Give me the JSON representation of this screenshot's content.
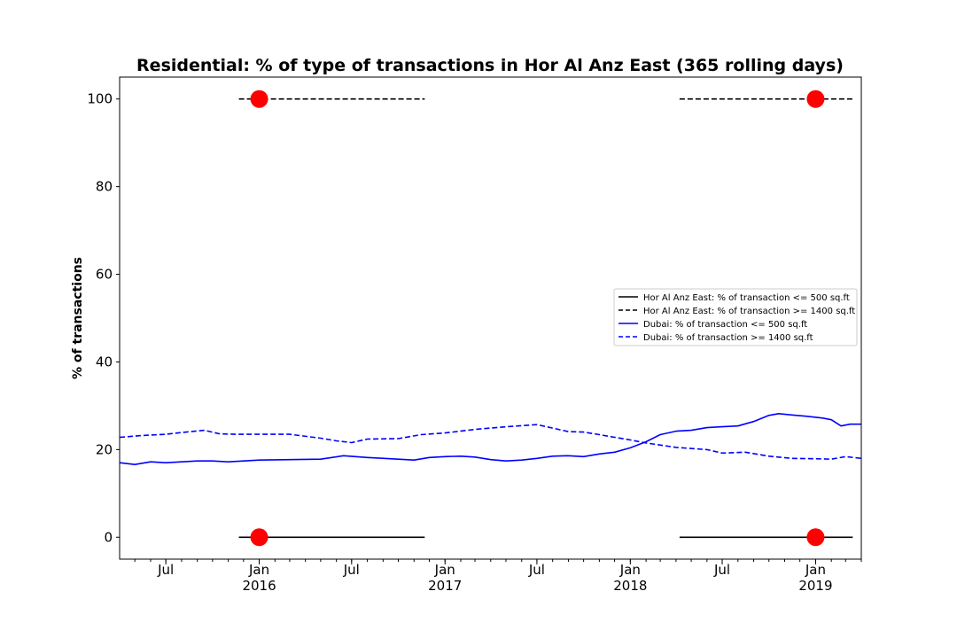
{
  "chart_data": {
    "type": "line",
    "title": "Residential: % of type of transactions in Hor Al Anz East (365 rolling days)",
    "ylabel": "% of transactions",
    "xlabel": "",
    "ylim": [
      -5,
      105
    ],
    "xlim": [
      "2015-04-01",
      "2019-04-01"
    ],
    "yticks": [
      0,
      20,
      40,
      60,
      80,
      100
    ],
    "xticks": [
      {
        "date": "2015-07-01",
        "label": "Jul",
        "sublabel": ""
      },
      {
        "date": "2016-01-01",
        "label": "Jan",
        "sublabel": "2016"
      },
      {
        "date": "2016-07-01",
        "label": "Jul",
        "sublabel": ""
      },
      {
        "date": "2017-01-01",
        "label": "Jan",
        "sublabel": "2017"
      },
      {
        "date": "2017-07-01",
        "label": "Jul",
        "sublabel": ""
      },
      {
        "date": "2018-01-01",
        "label": "Jan",
        "sublabel": "2018"
      },
      {
        "date": "2018-07-01",
        "label": "Jul",
        "sublabel": ""
      },
      {
        "date": "2019-01-01",
        "label": "Jan",
        "sublabel": "2019"
      }
    ],
    "legend_position": "center-right",
    "grid": false,
    "series": [
      {
        "name": "Hor Al Anz East: % of transaction <= 500 sq.ft",
        "color": "#000000",
        "style": "solid",
        "segments": [
          [
            {
              "x": "2015-11-22",
              "y": 0
            },
            {
              "x": "2016-11-22",
              "y": 0
            }
          ],
          [
            {
              "x": "2018-04-08",
              "y": 0
            },
            {
              "x": "2019-03-15",
              "y": 0
            }
          ]
        ]
      },
      {
        "name": "Hor Al Anz East: % of transaction >= 1400 sq.ft",
        "color": "#000000",
        "style": "dashed",
        "segments": [
          [
            {
              "x": "2015-11-22",
              "y": 100
            },
            {
              "x": "2016-11-22",
              "y": 100
            }
          ],
          [
            {
              "x": "2018-04-08",
              "y": 100
            },
            {
              "x": "2019-03-15",
              "y": 100
            }
          ]
        ]
      },
      {
        "name": "Dubai: % of transaction <= 500 sq.ft",
        "color": "#0000ff",
        "style": "solid",
        "points": [
          {
            "x": "2015-04-01",
            "y": 17.0
          },
          {
            "x": "2015-05-01",
            "y": 16.6
          },
          {
            "x": "2015-06-01",
            "y": 17.2
          },
          {
            "x": "2015-07-01",
            "y": 17.0
          },
          {
            "x": "2015-08-01",
            "y": 17.2
          },
          {
            "x": "2015-09-01",
            "y": 17.4
          },
          {
            "x": "2015-10-01",
            "y": 17.4
          },
          {
            "x": "2015-11-01",
            "y": 17.2
          },
          {
            "x": "2016-01-01",
            "y": 17.6
          },
          {
            "x": "2016-03-01",
            "y": 17.7
          },
          {
            "x": "2016-05-01",
            "y": 17.8
          },
          {
            "x": "2016-06-15",
            "y": 18.6
          },
          {
            "x": "2016-08-01",
            "y": 18.2
          },
          {
            "x": "2016-09-15",
            "y": 17.9
          },
          {
            "x": "2016-11-01",
            "y": 17.6
          },
          {
            "x": "2016-12-01",
            "y": 18.2
          },
          {
            "x": "2017-01-01",
            "y": 18.4
          },
          {
            "x": "2017-02-01",
            "y": 18.5
          },
          {
            "x": "2017-03-01",
            "y": 18.3
          },
          {
            "x": "2017-04-01",
            "y": 17.7
          },
          {
            "x": "2017-05-01",
            "y": 17.4
          },
          {
            "x": "2017-06-01",
            "y": 17.6
          },
          {
            "x": "2017-07-01",
            "y": 18.0
          },
          {
            "x": "2017-08-01",
            "y": 18.5
          },
          {
            "x": "2017-09-01",
            "y": 18.6
          },
          {
            "x": "2017-10-01",
            "y": 18.4
          },
          {
            "x": "2017-11-01",
            "y": 19.0
          },
          {
            "x": "2017-12-01",
            "y": 19.4
          },
          {
            "x": "2018-01-01",
            "y": 20.4
          },
          {
            "x": "2018-02-01",
            "y": 21.8
          },
          {
            "x": "2018-03-01",
            "y": 23.4
          },
          {
            "x": "2018-04-01",
            "y": 24.2
          },
          {
            "x": "2018-05-01",
            "y": 24.4
          },
          {
            "x": "2018-06-01",
            "y": 25.0
          },
          {
            "x": "2018-07-01",
            "y": 25.2
          },
          {
            "x": "2018-08-01",
            "y": 25.4
          },
          {
            "x": "2018-09-01",
            "y": 26.4
          },
          {
            "x": "2018-10-01",
            "y": 27.8
          },
          {
            "x": "2018-10-20",
            "y": 28.2
          },
          {
            "x": "2018-11-15",
            "y": 27.9
          },
          {
            "x": "2018-12-15",
            "y": 27.6
          },
          {
            "x": "2019-01-15",
            "y": 27.2
          },
          {
            "x": "2019-02-01",
            "y": 26.8
          },
          {
            "x": "2019-02-20",
            "y": 25.4
          },
          {
            "x": "2019-03-10",
            "y": 25.8
          },
          {
            "x": "2019-04-01",
            "y": 25.8
          }
        ]
      },
      {
        "name": "Dubai: % of transaction >= 1400 sq.ft",
        "color": "#0000ff",
        "style": "dashed",
        "points": [
          {
            "x": "2015-04-01",
            "y": 22.8
          },
          {
            "x": "2015-05-15",
            "y": 23.2
          },
          {
            "x": "2015-07-01",
            "y": 23.5
          },
          {
            "x": "2015-08-01",
            "y": 23.9
          },
          {
            "x": "2015-09-15",
            "y": 24.4
          },
          {
            "x": "2015-10-15",
            "y": 23.6
          },
          {
            "x": "2015-11-15",
            "y": 23.5
          },
          {
            "x": "2016-01-01",
            "y": 23.5
          },
          {
            "x": "2016-03-01",
            "y": 23.5
          },
          {
            "x": "2016-05-01",
            "y": 22.6
          },
          {
            "x": "2016-06-01",
            "y": 22.0
          },
          {
            "x": "2016-07-01",
            "y": 21.6
          },
          {
            "x": "2016-08-01",
            "y": 22.4
          },
          {
            "x": "2016-10-01",
            "y": 22.5
          },
          {
            "x": "2016-11-15",
            "y": 23.4
          },
          {
            "x": "2017-01-01",
            "y": 23.8
          },
          {
            "x": "2017-03-01",
            "y": 24.6
          },
          {
            "x": "2017-05-01",
            "y": 25.2
          },
          {
            "x": "2017-07-01",
            "y": 25.7
          },
          {
            "x": "2017-08-01",
            "y": 24.9
          },
          {
            "x": "2017-09-01",
            "y": 24.1
          },
          {
            "x": "2017-10-01",
            "y": 24.0
          },
          {
            "x": "2017-11-01",
            "y": 23.4
          },
          {
            "x": "2017-12-01",
            "y": 22.8
          },
          {
            "x": "2018-01-01",
            "y": 22.2
          },
          {
            "x": "2018-02-01",
            "y": 21.5
          },
          {
            "x": "2018-04-01",
            "y": 20.5
          },
          {
            "x": "2018-06-01",
            "y": 20.0
          },
          {
            "x": "2018-07-01",
            "y": 19.2
          },
          {
            "x": "2018-08-15",
            "y": 19.4
          },
          {
            "x": "2018-10-01",
            "y": 18.5
          },
          {
            "x": "2018-11-15",
            "y": 18.0
          },
          {
            "x": "2019-01-01",
            "y": 17.9
          },
          {
            "x": "2019-02-01",
            "y": 17.8
          },
          {
            "x": "2019-03-01",
            "y": 18.4
          },
          {
            "x": "2019-04-01",
            "y": 18.0
          }
        ]
      }
    ],
    "markers": {
      "color": "#ff0000",
      "points": [
        {
          "x": "2016-01-01",
          "y": 100
        },
        {
          "x": "2016-01-01",
          "y": 0
        },
        {
          "x": "2019-01-01",
          "y": 100
        },
        {
          "x": "2019-01-01",
          "y": 0
        }
      ]
    }
  }
}
